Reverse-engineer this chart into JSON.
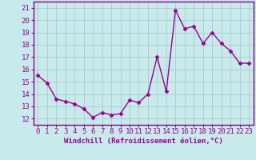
{
  "xlabel": "Windchill (Refroidissement éolien,°C)",
  "bg_color": "#c8eaea",
  "grid_color": "#aacccc",
  "line_color": "#990099",
  "marker": "D",
  "marker_size": 2.5,
  "line_width": 1.0,
  "x": [
    0,
    1,
    2,
    3,
    4,
    5,
    6,
    7,
    8,
    9,
    10,
    11,
    12,
    13,
    14,
    15,
    16,
    17,
    18,
    19,
    20,
    21,
    22,
    23
  ],
  "y": [
    15.5,
    14.9,
    13.6,
    13.4,
    13.2,
    12.8,
    12.1,
    12.5,
    12.3,
    12.4,
    13.5,
    13.3,
    14.0,
    17.0,
    14.2,
    20.8,
    19.3,
    19.5,
    18.1,
    19.0,
    18.1,
    17.5,
    16.5,
    16.5
  ],
  "xlim": [
    -0.5,
    23.5
  ],
  "ylim": [
    11.5,
    21.5
  ],
  "yticks": [
    12,
    13,
    14,
    15,
    16,
    17,
    18,
    19,
    20,
    21
  ],
  "xticks": [
    0,
    1,
    2,
    3,
    4,
    5,
    6,
    7,
    8,
    9,
    10,
    11,
    12,
    13,
    14,
    15,
    16,
    17,
    18,
    19,
    20,
    21,
    22,
    23
  ],
  "xlabel_fontsize": 6.5,
  "tick_fontsize": 6.5
}
